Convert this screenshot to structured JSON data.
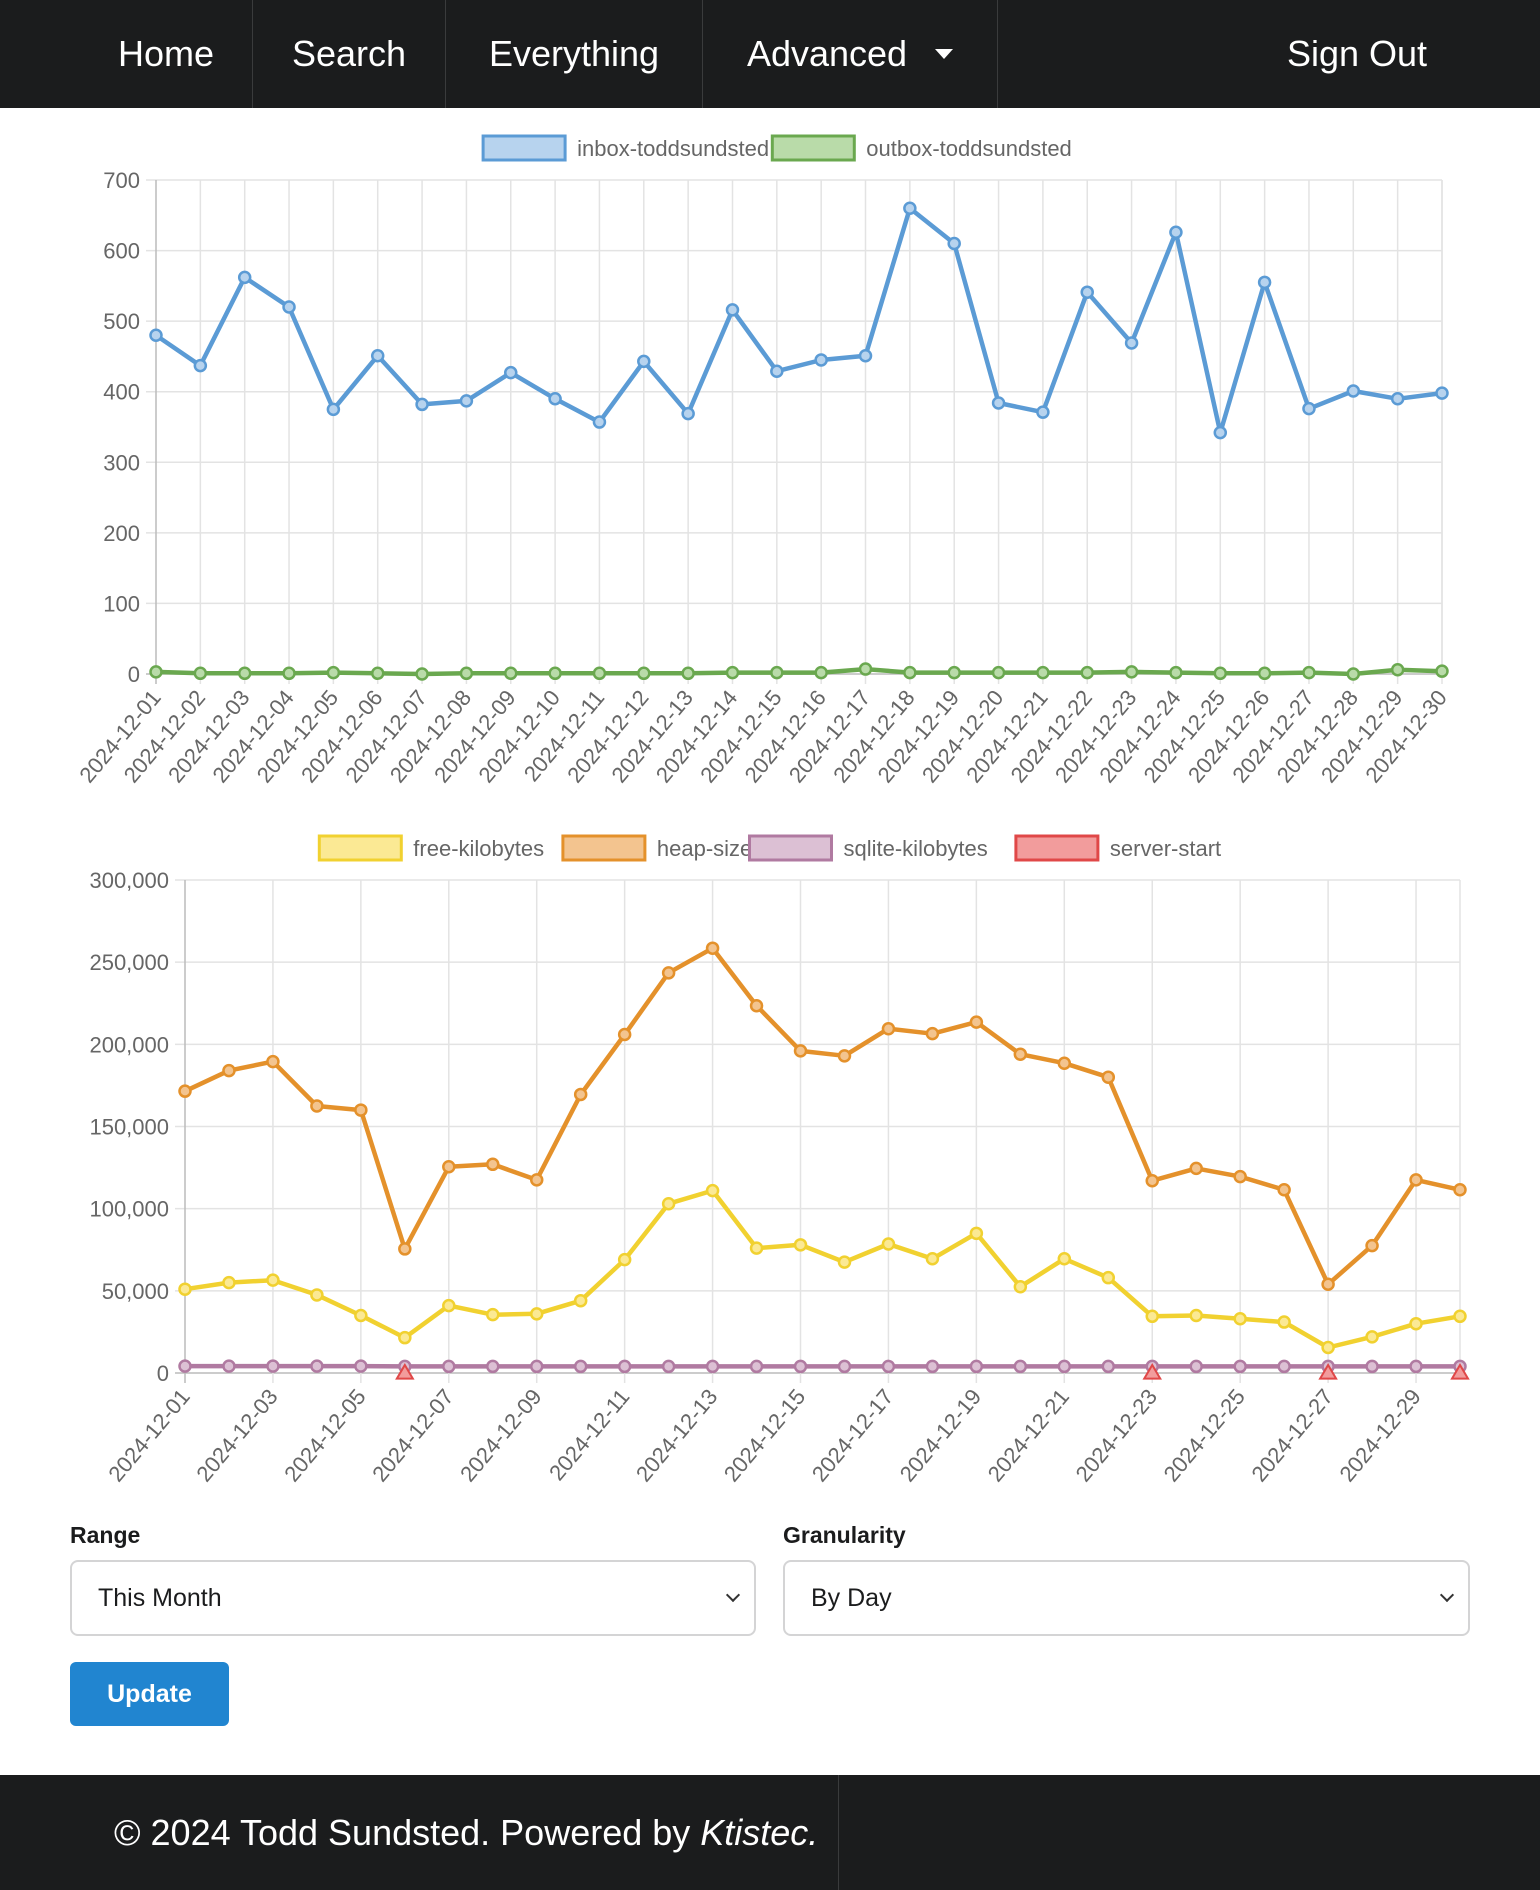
{
  "nav": {
    "home": "Home",
    "search": "Search",
    "everything": "Everything",
    "advanced": "Advanced",
    "sign_out": "Sign Out"
  },
  "chart_data": [
    {
      "type": "line",
      "x": [
        "2024-12-01",
        "2024-12-02",
        "2024-12-03",
        "2024-12-04",
        "2024-12-05",
        "2024-12-06",
        "2024-12-07",
        "2024-12-08",
        "2024-12-09",
        "2024-12-10",
        "2024-12-11",
        "2024-12-12",
        "2024-12-13",
        "2024-12-14",
        "2024-12-15",
        "2024-12-16",
        "2024-12-17",
        "2024-12-18",
        "2024-12-19",
        "2024-12-20",
        "2024-12-21",
        "2024-12-22",
        "2024-12-23",
        "2024-12-24",
        "2024-12-25",
        "2024-12-26",
        "2024-12-27",
        "2024-12-28",
        "2024-12-29",
        "2024-12-30"
      ],
      "x_tick_labels": [
        "2024-12-01",
        "2024-12-02",
        "2024-12-03",
        "2024-12-04",
        "2024-12-05",
        "2024-12-06",
        "2024-12-07",
        "2024-12-08",
        "2024-12-09",
        "2024-12-10",
        "2024-12-11",
        "2024-12-12",
        "2024-12-13",
        "2024-12-14",
        "2024-12-15",
        "2024-12-16",
        "2024-12-17",
        "2024-12-18",
        "2024-12-19",
        "2024-12-20",
        "2024-12-21",
        "2024-12-22",
        "2024-12-23",
        "2024-12-24",
        "2024-12-25",
        "2024-12-26",
        "2024-12-27",
        "2024-12-28",
        "2024-12-29",
        "2024-12-30"
      ],
      "ylim": [
        0,
        700
      ],
      "yticks": [
        0,
        100,
        200,
        300,
        400,
        500,
        600,
        700
      ],
      "ytick_labels": [
        "0",
        "100",
        "200",
        "300",
        "400",
        "500",
        "600",
        "700"
      ],
      "legend": "top-center",
      "grid": true,
      "series": [
        {
          "name": "inbox-toddsundsted",
          "color": "#5b9bd5",
          "fill": "#b7d3ee",
          "values": [
            480,
            437,
            562,
            520,
            375,
            451,
            382,
            387,
            427,
            390,
            357,
            443,
            369,
            516,
            429,
            445,
            451,
            660,
            610,
            384,
            371,
            541,
            469,
            626,
            342,
            555,
            376,
            401,
            390,
            398
          ]
        },
        {
          "name": "outbox-toddsundsted",
          "color": "#6aa84f",
          "fill": "#b9dba9",
          "values": [
            3,
            1,
            1,
            1,
            2,
            1,
            0,
            1,
            1,
            1,
            1,
            1,
            1,
            2,
            2,
            2,
            7,
            2,
            2,
            2,
            2,
            2,
            3,
            2,
            1,
            1,
            2,
            0,
            6,
            4
          ]
        }
      ]
    },
    {
      "type": "line",
      "x": [
        "2024-12-01",
        "2024-12-02",
        "2024-12-03",
        "2024-12-04",
        "2024-12-05",
        "2024-12-06",
        "2024-12-07",
        "2024-12-08",
        "2024-12-09",
        "2024-12-10",
        "2024-12-11",
        "2024-12-12",
        "2024-12-13",
        "2024-12-14",
        "2024-12-15",
        "2024-12-16",
        "2024-12-17",
        "2024-12-18",
        "2024-12-19",
        "2024-12-20",
        "2024-12-21",
        "2024-12-22",
        "2024-12-23",
        "2024-12-24",
        "2024-12-25",
        "2024-12-26",
        "2024-12-27",
        "2024-12-28",
        "2024-12-29",
        "2024-12-30"
      ],
      "x_tick_labels": [
        "2024-12-01",
        "2024-12-03",
        "2024-12-05",
        "2024-12-07",
        "2024-12-09",
        "2024-12-11",
        "2024-12-13",
        "2024-12-15",
        "2024-12-17",
        "2024-12-19",
        "2024-12-21",
        "2024-12-23",
        "2024-12-25",
        "2024-12-27",
        "2024-12-29"
      ],
      "ylim": [
        0,
        300000
      ],
      "yticks": [
        0,
        50000,
        100000,
        150000,
        200000,
        250000,
        300000
      ],
      "ytick_labels": [
        "0",
        "50,000",
        "100,000",
        "150,000",
        "200,000",
        "250,000",
        "300,000"
      ],
      "legend": "top-center",
      "grid": true,
      "series": [
        {
          "name": "free-kilobytes",
          "color": "#f1d130",
          "fill": "#fbe994",
          "values": [
            51000,
            55000,
            56500,
            47500,
            35000,
            21500,
            41000,
            35500,
            36000,
            44000,
            69000,
            103000,
            111000,
            76000,
            78000,
            67500,
            78500,
            69500,
            85000,
            52500,
            69500,
            58000,
            34500,
            35000,
            33000,
            31000,
            15500,
            22000,
            30000,
            34500
          ]
        },
        {
          "name": "heap-size",
          "color": "#e4912b",
          "fill": "#f3c48f",
          "values": [
            171500,
            184000,
            189500,
            162500,
            160000,
            75500,
            125500,
            127000,
            117500,
            169500,
            206000,
            243500,
            258500,
            223500,
            196000,
            193000,
            209500,
            206500,
            213500,
            194000,
            188500,
            180000,
            117000,
            124500,
            119500,
            111500,
            54000,
            77500,
            117500,
            111500
          ]
        },
        {
          "name": "sqlite-kilobytes",
          "color": "#b07aa1",
          "fill": "#dcc0d4",
          "values": [
            4200,
            4200,
            4200,
            4200,
            4200,
            4000,
            4000,
            4000,
            4000,
            4000,
            4000,
            4000,
            4000,
            4000,
            4000,
            4000,
            4000,
            4000,
            4000,
            4000,
            4000,
            4000,
            4000,
            4000,
            4000,
            4000,
            4000,
            4000,
            4000,
            4000
          ]
        },
        {
          "name": "server-start",
          "color": "#e04848",
          "fill": "#f29c9c",
          "values": [
            null,
            null,
            null,
            null,
            null,
            0,
            null,
            null,
            null,
            null,
            null,
            null,
            null,
            null,
            null,
            null,
            null,
            null,
            null,
            null,
            null,
            null,
            0,
            null,
            null,
            null,
            0,
            null,
            null,
            0
          ]
        }
      ]
    }
  ],
  "form": {
    "range_label": "Range",
    "range_value": "This Month",
    "granularity_label": "Granularity",
    "granularity_value": "By Day",
    "update_label": "Update"
  },
  "footer": {
    "copyright": "© 2024 Todd Sundsted. Powered by ",
    "brand": "Ktistec."
  }
}
